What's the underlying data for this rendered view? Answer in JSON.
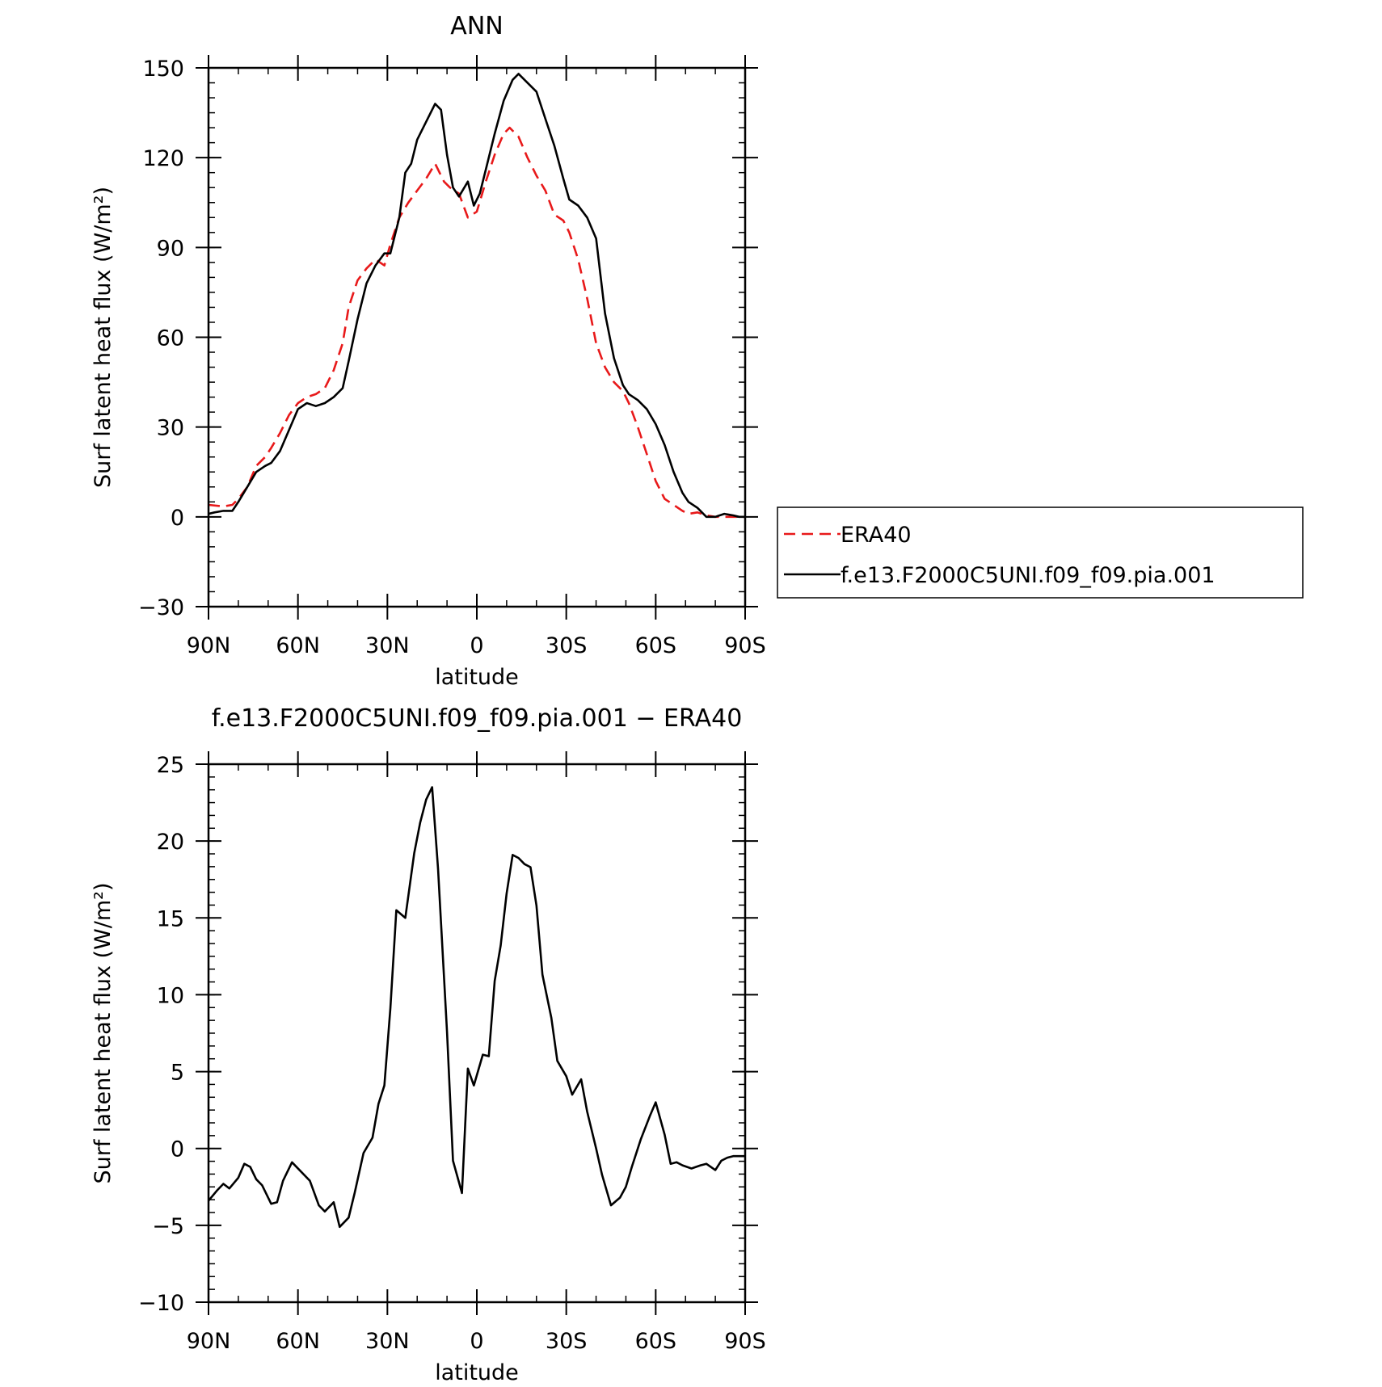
{
  "chart_data": [
    {
      "type": "line",
      "title": "ANN",
      "xlabel": "latitude",
      "ylabel": "Surf latent heat flux (W/m²)",
      "x_direction": "90N to 90S (north on left)",
      "xlim": [
        90,
        -90
      ],
      "ylim": [
        -30,
        150
      ],
      "xticks": [
        90,
        60,
        30,
        0,
        -30,
        -60,
        -90
      ],
      "xtick_labels": [
        "90N",
        "60N",
        "30N",
        "0",
        "30S",
        "60S",
        "90S"
      ],
      "yticks": [
        -30,
        0,
        30,
        60,
        90,
        120,
        150
      ],
      "ytick_labels": [
        "−30",
        "0",
        "30",
        "60",
        "90",
        "120",
        "150"
      ],
      "legend_position": "right",
      "series": [
        {
          "name": "ERA40",
          "color": "#e8191a",
          "dash": "dashed",
          "x": [
            90,
            85,
            82,
            80,
            77,
            74,
            71,
            69,
            66,
            63,
            60,
            57,
            54,
            51,
            48,
            45,
            43,
            40,
            37,
            34,
            31,
            29,
            26,
            23,
            20,
            17,
            14,
            11,
            9,
            6,
            3,
            0,
            -3,
            -6,
            -9,
            -11,
            -14,
            -17,
            -20,
            -23,
            -26,
            -29,
            -31,
            -34,
            -37,
            -40,
            -43,
            -46,
            -49,
            -51,
            -54,
            -57,
            -60,
            -63,
            -66,
            -69,
            -71,
            -74,
            -77,
            -80,
            -83,
            -86,
            -90
          ],
          "y": [
            4,
            3.5,
            4,
            6,
            10,
            17,
            20,
            23,
            28,
            34,
            38,
            40,
            41,
            43,
            49,
            58,
            70,
            79,
            83,
            86,
            84,
            91,
            100,
            105,
            109,
            113,
            118,
            112,
            110,
            108,
            100,
            102,
            112,
            121,
            128,
            130,
            127,
            120,
            114,
            109,
            101,
            99,
            95,
            86,
            73,
            58,
            50,
            45,
            42,
            38,
            30,
            21,
            12,
            6,
            4,
            2,
            1,
            1.5,
            0.5,
            0,
            0,
            0,
            0
          ]
        },
        {
          "name": "f.e13.F2000C5UNI.f09_f09.pia.001",
          "color": "#000000",
          "dash": "solid",
          "x": [
            90,
            88,
            85,
            82,
            80,
            77,
            74,
            71,
            69,
            66,
            63,
            60,
            57,
            54,
            51,
            48,
            45,
            43,
            40,
            37,
            34,
            31,
            29,
            26,
            24,
            22,
            20,
            17,
            14,
            12,
            10,
            8,
            6,
            3,
            1,
            -1,
            -3,
            -6,
            -9,
            -12,
            -14,
            -16,
            -20,
            -23,
            -26,
            -29,
            -31,
            -34,
            -37,
            -40,
            -43,
            -46,
            -49,
            -51,
            -54,
            -57,
            -60,
            -63,
            -66,
            -69,
            -71,
            -74,
            -77,
            -80,
            -83,
            -86,
            -88,
            -90
          ],
          "y": [
            1,
            1.5,
            2,
            2,
            5,
            10,
            15,
            17,
            18,
            22,
            29,
            36,
            38,
            37,
            38,
            40,
            43,
            52,
            66,
            78,
            84,
            88,
            88,
            100,
            115,
            118,
            126,
            132,
            138,
            136,
            121,
            110,
            107,
            112,
            104,
            108,
            116,
            128,
            139,
            146,
            148,
            146,
            142,
            133,
            124,
            113,
            106,
            104,
            100,
            93,
            68,
            53,
            44,
            41,
            39,
            36,
            31,
            24,
            15,
            8,
            5,
            3,
            0,
            0,
            1,
            0.5,
            0,
            0
          ]
        }
      ]
    },
    {
      "type": "line",
      "title": "f.e13.F2000C5UNI.f09_f09.pia.001 − ERA40",
      "xlabel": "latitude",
      "ylabel": "Surf latent heat flux (W/m²)",
      "x_direction": "90N to 90S (north on left)",
      "xlim": [
        90,
        -90
      ],
      "ylim": [
        -10,
        25
      ],
      "xticks": [
        90,
        60,
        30,
        0,
        -30,
        -60,
        -90
      ],
      "xtick_labels": [
        "90N",
        "60N",
        "30N",
        "0",
        "30S",
        "60S",
        "90S"
      ],
      "yticks": [
        -10,
        -5,
        0,
        5,
        10,
        15,
        20,
        25
      ],
      "ytick_labels": [
        "−10",
        "−5",
        "0",
        "5",
        "10",
        "15",
        "20",
        "25"
      ],
      "series": [
        {
          "color": "#000000",
          "dash": "solid",
          "x": [
            90,
            87,
            85,
            83,
            80,
            78,
            76,
            74,
            72,
            69,
            67,
            65,
            62,
            59,
            56,
            53,
            51,
            48,
            46,
            43,
            41,
            38,
            35,
            33,
            31,
            29,
            27,
            24,
            21,
            19,
            17,
            15,
            13,
            10,
            8,
            5,
            3,
            1,
            -2,
            -4,
            -6,
            -8,
            -10,
            -12,
            -14,
            -16,
            -18,
            -20,
            -22,
            -25,
            -27,
            -30,
            -32,
            -35,
            -37,
            -40,
            -42,
            -45,
            -48,
            -50,
            -52,
            -55,
            -58,
            -60,
            -63,
            -65,
            -67,
            -69,
            -72,
            -75,
            -77,
            -80,
            -82,
            -84,
            -86,
            -88,
            -90
          ],
          "y": [
            -3.4,
            -2.7,
            -2.3,
            -2.6,
            -1.9,
            -1.0,
            -1.2,
            -2.0,
            -2.4,
            -3.6,
            -3.5,
            -2.1,
            -0.9,
            -1.5,
            -2.1,
            -3.7,
            -4.1,
            -3.5,
            -5.1,
            -4.5,
            -2.9,
            -0.3,
            0.7,
            2.9,
            4.1,
            9.1,
            15.5,
            15.0,
            19.2,
            21.2,
            22.7,
            23.5,
            18.2,
            7.6,
            -0.8,
            -2.9,
            5.2,
            4.1,
            6.1,
            6.0,
            10.9,
            13.2,
            16.6,
            19.1,
            18.9,
            18.5,
            18.3,
            15.8,
            11.3,
            8.5,
            5.7,
            4.7,
            3.5,
            4.5,
            2.4,
            0.0,
            -1.7,
            -3.7,
            -3.2,
            -2.5,
            -1.2,
            0.6,
            2.1,
            3.0,
            0.9,
            -1.0,
            -0.9,
            -1.1,
            -1.3,
            -1.1,
            -1.0,
            -1.4,
            -0.8,
            -0.6,
            -0.5,
            -0.5,
            -0.5
          ]
        }
      ]
    }
  ]
}
